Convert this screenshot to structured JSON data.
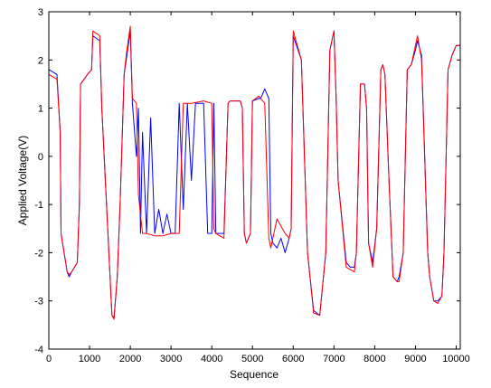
{
  "chart_data": {
    "type": "line",
    "title": "",
    "xlabel": "Sequence",
    "ylabel": "Applied Voltage(V)",
    "xlim": [
      0,
      10100
    ],
    "ylim": [
      -4,
      3
    ],
    "xticks": [
      0,
      1000,
      2000,
      3000,
      4000,
      5000,
      6000,
      7000,
      8000,
      9000,
      10000
    ],
    "yticks": [
      -4,
      -3,
      -2,
      -1,
      0,
      1,
      2,
      3
    ],
    "grid": false,
    "legend": "none",
    "series": [
      {
        "color": "#0000ff",
        "x": [
          0,
          200,
          280,
          300,
          450,
          500,
          560,
          700,
          750,
          780,
          950,
          1050,
          1080,
          1250,
          1300,
          1550,
          1600,
          1680,
          1750,
          1850,
          1900,
          2000,
          2050,
          2150,
          2200,
          2250,
          2300,
          2400,
          2500,
          2600,
          2700,
          2800,
          2900,
          3000,
          3100,
          3200,
          3300,
          3400,
          3500,
          3600,
          3700,
          3800,
          3900,
          4000,
          4050,
          4100,
          4200,
          4300,
          4400,
          4450,
          4500,
          4600,
          4700,
          4750,
          4800,
          4850,
          4950,
          5000,
          5150,
          5200,
          5300,
          5400,
          5450,
          5500,
          5600,
          5700,
          5800,
          5900,
          5950,
          6000,
          6200,
          6350,
          6500,
          6650,
          6800,
          6900,
          7000,
          7050,
          7100,
          7300,
          7400,
          7500,
          7550,
          7650,
          7750,
          7800,
          7850,
          7950,
          8050,
          8150,
          8200,
          8250,
          8350,
          8450,
          8550,
          8600,
          8700,
          8800,
          8900,
          9000,
          9050,
          9150,
          9300,
          9350,
          9450,
          9550,
          9650,
          9700,
          9800,
          9900,
          10000,
          10100
        ],
        "y": [
          1.8,
          1.7,
          0.5,
          -1.6,
          -2.4,
          -2.5,
          -2.4,
          -2.2,
          -1.0,
          1.5,
          1.7,
          1.8,
          2.5,
          2.4,
          1.0,
          -3.3,
          -3.35,
          -2.5,
          -1.0,
          1.7,
          2.0,
          2.6,
          1.1,
          0.0,
          1.0,
          -1.6,
          0.5,
          -1.6,
          0.8,
          -1.6,
          -1.1,
          -1.6,
          -1.2,
          -1.6,
          -1.6,
          1.1,
          -1.1,
          1.1,
          -0.5,
          1.1,
          1.1,
          1.1,
          -1.6,
          -1.6,
          1.1,
          -1.6,
          -1.6,
          -1.6,
          1.1,
          1.15,
          1.15,
          1.15,
          1.15,
          1.0,
          -1.6,
          -1.8,
          -1.6,
          1.15,
          1.2,
          1.2,
          1.4,
          1.2,
          -1.6,
          -1.8,
          -1.9,
          -1.7,
          -2.0,
          -1.7,
          -1.5,
          2.5,
          2.0,
          -2.0,
          -3.2,
          -3.3,
          -2.0,
          2.2,
          2.6,
          1.3,
          -0.5,
          -2.2,
          -2.3,
          -2.3,
          -2.0,
          1.5,
          1.5,
          1.0,
          -1.8,
          -2.2,
          -1.5,
          1.8,
          1.9,
          1.7,
          -0.5,
          -2.5,
          -2.6,
          -2.5,
          -2.0,
          1.8,
          1.9,
          2.2,
          2.4,
          2.1,
          -2.0,
          -2.5,
          -3.0,
          -3.0,
          -2.9,
          -2.0,
          1.8,
          2.1,
          2.3,
          2.3
        ]
      },
      {
        "color": "#ff0000",
        "x": [
          0,
          200,
          280,
          300,
          450,
          500,
          560,
          700,
          750,
          780,
          950,
          1050,
          1080,
          1250,
          1300,
          1550,
          1600,
          1680,
          1750,
          1850,
          1900,
          2000,
          2050,
          2150,
          2200,
          2300,
          2400,
          2600,
          2800,
          3000,
          3200,
          3300,
          3500,
          3800,
          4000,
          4050,
          4100,
          4200,
          4300,
          4400,
          4450,
          4500,
          4700,
          4750,
          4800,
          4850,
          4950,
          5000,
          5150,
          5300,
          5400,
          5450,
          5600,
          5800,
          5900,
          5950,
          6000,
          6200,
          6350,
          6500,
          6650,
          6800,
          6900,
          7000,
          7050,
          7100,
          7300,
          7400,
          7500,
          7550,
          7650,
          7750,
          7800,
          7850,
          7950,
          8050,
          8150,
          8200,
          8250,
          8350,
          8450,
          8550,
          8600,
          8700,
          8800,
          8900,
          9000,
          9050,
          9150,
          9300,
          9350,
          9450,
          9550,
          9650,
          9700,
          9800,
          9900,
          10000,
          10100
        ],
        "y": [
          1.7,
          1.6,
          0.5,
          -1.6,
          -2.4,
          -2.45,
          -2.4,
          -2.2,
          -1.0,
          1.5,
          1.7,
          1.8,
          2.6,
          2.5,
          1.0,
          -3.3,
          -3.38,
          -2.5,
          -1.0,
          1.7,
          2.1,
          2.7,
          1.2,
          1.1,
          -0.8,
          -1.6,
          -1.6,
          -1.65,
          -1.65,
          -1.6,
          -1.6,
          1.1,
          1.1,
          1.15,
          1.1,
          -1.5,
          -1.6,
          -1.65,
          -1.7,
          1.1,
          1.15,
          1.15,
          1.15,
          1.0,
          -1.6,
          -1.8,
          -1.6,
          1.15,
          1.25,
          1.1,
          -1.7,
          -1.9,
          -1.3,
          -1.6,
          -1.7,
          -1.5,
          2.6,
          2.0,
          -2.0,
          -3.25,
          -3.3,
          -2.0,
          2.2,
          2.6,
          1.3,
          -0.5,
          -2.3,
          -2.35,
          -2.4,
          -2.0,
          1.5,
          1.5,
          1.0,
          -1.8,
          -2.3,
          -1.5,
          1.8,
          1.9,
          1.7,
          -0.5,
          -2.5,
          -2.6,
          -2.6,
          -2.0,
          1.8,
          1.9,
          2.3,
          2.5,
          2.0,
          -2.0,
          -2.5,
          -3.0,
          -3.05,
          -2.9,
          -2.0,
          1.8,
          2.1,
          2.3,
          2.3
        ]
      }
    ]
  }
}
